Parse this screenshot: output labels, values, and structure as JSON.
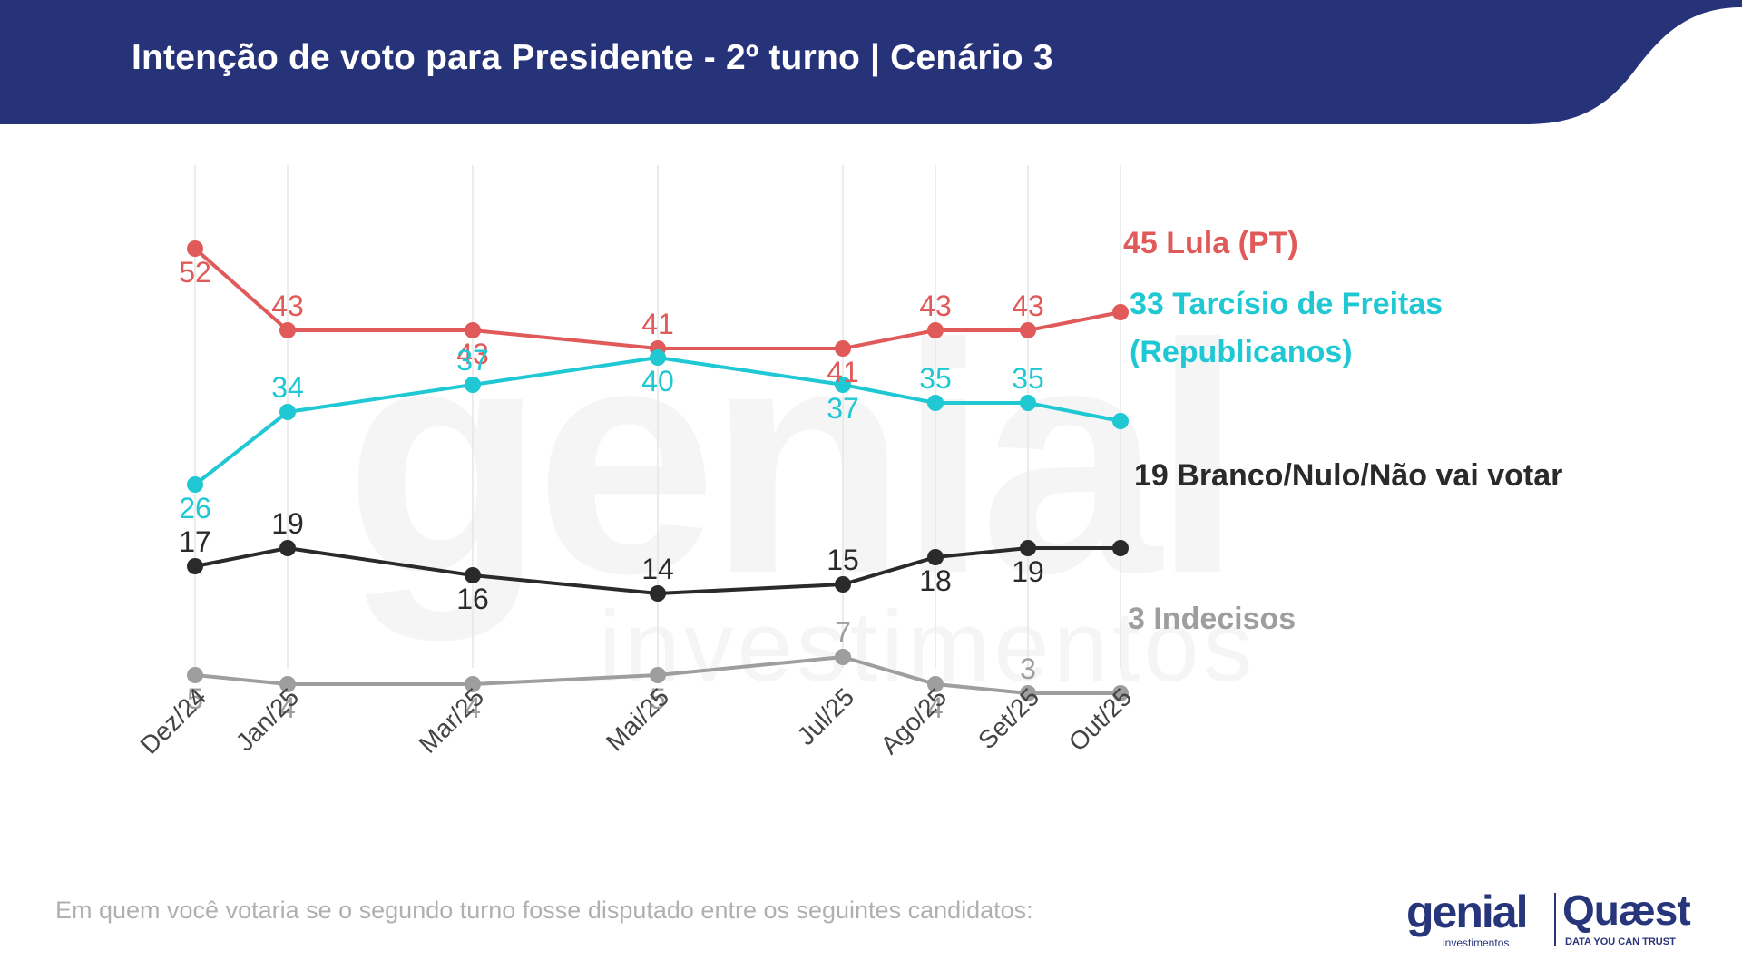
{
  "header": {
    "title": "Intenção de voto para Presidente - 2º turno | Cenário 3",
    "color": "#263378"
  },
  "watermark": {
    "word": "genial",
    "sub": "investimentos"
  },
  "chart_data": {
    "type": "line",
    "title": "Intenção de voto para Presidente - 2º turno | Cenário 3",
    "subtitle": "Em quem você votaria se o segundo turno fosse disputado entre os seguintes candidatos:",
    "categories": [
      "Dez/24",
      "Jan/25",
      "Mar/25",
      "Mai/25",
      "Jul/25",
      "Ago/25",
      "Set/25",
      "Out/25"
    ],
    "x_months": [
      0,
      1,
      3,
      5,
      7,
      8,
      9,
      10
    ],
    "ylim": [
      0,
      60
    ],
    "grid": "vertical",
    "legend": "right-end-labels",
    "series": [
      {
        "name": "Lula (PT)",
        "label_lines": [
          "45 Lula (PT)"
        ],
        "color": "#e05a5a",
        "values": [
          52,
          43,
          43,
          41,
          41,
          43,
          43,
          45
        ],
        "point_labels": [
          "52",
          "43",
          "43",
          "41",
          "41",
          "43",
          "43",
          ""
        ],
        "label_pos": [
          "below",
          "above",
          "below",
          "above",
          "below",
          "above",
          "above",
          ""
        ]
      },
      {
        "name": "Tarcísio de Freitas (Republicanos)",
        "label_lines": [
          "33 Tarcísio de Freitas",
          "(Republicanos)"
        ],
        "color": "#1fc8d2",
        "values": [
          26,
          34,
          37,
          40,
          37,
          35,
          35,
          33
        ],
        "point_labels": [
          "26",
          "34",
          "37",
          "40",
          "37",
          "35",
          "35",
          ""
        ],
        "label_pos": [
          "below",
          "above",
          "above",
          "below",
          "below",
          "above",
          "above",
          ""
        ]
      },
      {
        "name": "Branco/Nulo/Não vai votar",
        "label_lines": [
          "19 Branco/Nulo/Não vai votar"
        ],
        "color": "#2a2a2a",
        "values": [
          17,
          19,
          16,
          14,
          15,
          18,
          19,
          19
        ],
        "point_labels": [
          "17",
          "19",
          "16",
          "14",
          "15",
          "18",
          "19",
          ""
        ],
        "label_pos": [
          "above",
          "above",
          "below",
          "above",
          "above",
          "below",
          "below",
          ""
        ]
      },
      {
        "name": "Indecisos",
        "label_lines": [
          "3 Indecisos"
        ],
        "color": "#9e9e9e",
        "values": [
          5,
          4,
          4,
          5,
          7,
          4,
          3,
          3
        ],
        "point_labels": [
          "5",
          "4",
          "4",
          "5",
          "7",
          "4",
          "3",
          ""
        ],
        "label_pos": [
          "below",
          "below",
          "below",
          "below",
          "above",
          "below",
          "above",
          ""
        ]
      }
    ]
  },
  "logos": {
    "genial": "genial",
    "genial_sub": "investimentos",
    "quaest": "Quæst",
    "quaest_sub": "DATA YOU CAN TRUST"
  }
}
